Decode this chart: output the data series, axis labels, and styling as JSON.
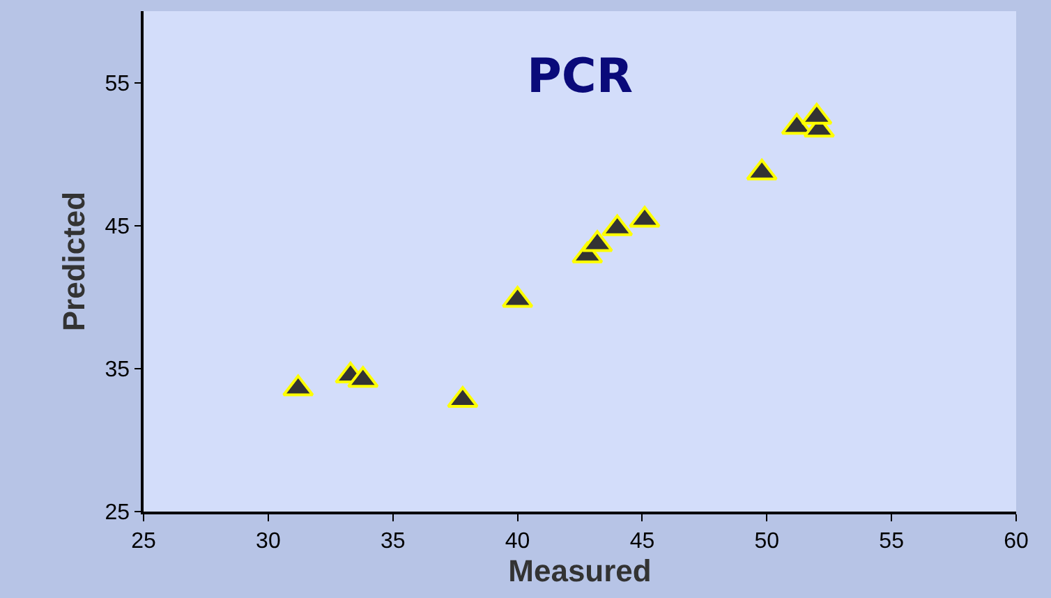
{
  "chart_data": {
    "type": "scatter",
    "title": "PCR",
    "xlabel": "Measured",
    "ylabel": "Predicted",
    "x": [
      31.2,
      33.3,
      33.8,
      37.8,
      40.0,
      42.8,
      43.2,
      44.0,
      45.1,
      49.8,
      51.2,
      52.1,
      52.0
    ],
    "series": [
      {
        "color": "#333333",
        "values": [
          33.6,
          34.5,
          34.2,
          32.8,
          39.8,
          42.9,
          43.7,
          44.8,
          45.4,
          48.7,
          51.9,
          51.7,
          52.6
        ]
      }
    ],
    "xlim": [
      25,
      60
    ],
    "xticks": [
      25,
      30,
      35,
      40,
      45,
      50,
      55,
      60
    ],
    "ylim": [
      25,
      60
    ],
    "yticks": [
      25,
      35,
      45,
      55
    ],
    "marker": "triangle",
    "grid": false
  }
}
